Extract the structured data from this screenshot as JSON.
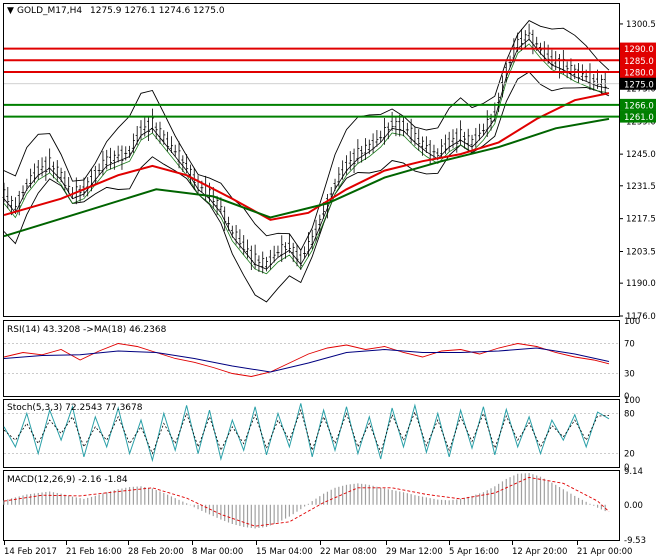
{
  "chart_data": [
    {
      "type": "candlestick",
      "title": "GOLD_M17,H4",
      "ohlc_label": "1275.9 1276.1 1274.6 1275.0",
      "current_price": 1275.0,
      "ylim": [
        1176.0,
        1309.0
      ],
      "price_ticks": [
        "1300.5",
        "1287.0",
        "1273.0",
        "1259.0",
        "1245.0",
        "1231.5",
        "1217.5",
        "1203.5",
        "1190.0",
        "1176.0"
      ],
      "price_tick_values": [
        1300.5,
        1287.0,
        1273.0,
        1259.0,
        1245.0,
        1231.5,
        1217.5,
        1203.5,
        1190.0,
        1176.0
      ],
      "levels": [
        {
          "label": "1290.0",
          "value": 1290.0,
          "color": "#e00000"
        },
        {
          "label": "1285.0",
          "value": 1285.0,
          "color": "#e00000"
        },
        {
          "label": "1280.0",
          "value": 1280.0,
          "color": "#e00000"
        },
        {
          "label": "1266.0",
          "value": 1266.0,
          "color": "#008000"
        },
        {
          "label": "1261.0",
          "value": 1261.0,
          "color": "#008000"
        }
      ],
      "close_path": [
        [
          0,
          1228
        ],
        [
          6,
          1222
        ],
        [
          12,
          1232
        ],
        [
          18,
          1238
        ],
        [
          24,
          1241
        ],
        [
          30,
          1236
        ],
        [
          36,
          1228
        ],
        [
          42,
          1230
        ],
        [
          48,
          1236
        ],
        [
          54,
          1242
        ],
        [
          60,
          1244
        ],
        [
          66,
          1246
        ],
        [
          72,
          1255
        ],
        [
          78,
          1258
        ],
        [
          84,
          1252
        ],
        [
          90,
          1246
        ],
        [
          96,
          1240
        ],
        [
          102,
          1232
        ],
        [
          108,
          1228
        ],
        [
          114,
          1222
        ],
        [
          120,
          1212
        ],
        [
          126,
          1206
        ],
        [
          132,
          1200
        ],
        [
          138,
          1198
        ],
        [
          144,
          1203
        ],
        [
          150,
          1206
        ],
        [
          156,
          1200
        ],
        [
          162,
          1208
        ],
        [
          168,
          1220
        ],
        [
          174,
          1232
        ],
        [
          180,
          1240
        ],
        [
          186,
          1245
        ],
        [
          192,
          1248
        ],
        [
          198,
          1252
        ],
        [
          204,
          1258
        ],
        [
          210,
          1257
        ],
        [
          216,
          1252
        ],
        [
          222,
          1248
        ],
        [
          228,
          1245
        ],
        [
          234,
          1250
        ],
        [
          240,
          1253
        ],
        [
          246,
          1250
        ],
        [
          252,
          1255
        ],
        [
          258,
          1262
        ],
        [
          264,
          1280
        ],
        [
          270,
          1292
        ],
        [
          276,
          1296
        ],
        [
          282,
          1290
        ],
        [
          288,
          1285
        ],
        [
          294,
          1283
        ],
        [
          300,
          1280
        ],
        [
          306,
          1278
        ],
        [
          312,
          1276
        ],
        [
          318,
          1275
        ]
      ],
      "ma_red": [
        [
          0,
          1219
        ],
        [
          30,
          1226
        ],
        [
          60,
          1236
        ],
        [
          78,
          1240
        ],
        [
          96,
          1236
        ],
        [
          120,
          1226
        ],
        [
          140,
          1217
        ],
        [
          160,
          1220
        ],
        [
          180,
          1230
        ],
        [
          200,
          1238
        ],
        [
          220,
          1242
        ],
        [
          240,
          1245
        ],
        [
          260,
          1250
        ],
        [
          280,
          1260
        ],
        [
          300,
          1268
        ],
        [
          318,
          1271
        ]
      ],
      "ma_green": [
        [
          0,
          1210
        ],
        [
          40,
          1220
        ],
        [
          80,
          1230
        ],
        [
          110,
          1227
        ],
        [
          140,
          1218
        ],
        [
          170,
          1224
        ],
        [
          200,
          1235
        ],
        [
          230,
          1242
        ],
        [
          260,
          1248
        ],
        [
          290,
          1256
        ],
        [
          318,
          1260
        ]
      ],
      "x_ticks": [
        "14 Feb 2017",
        "21 Feb 16:00",
        "28 Feb 20:00",
        "8 Mar 00:00",
        "15 Mar 04:00",
        "22 Mar 08:00",
        "29 Mar 12:00",
        "5 Apr 16:00",
        "12 Apr 20:00",
        "21 Apr 00:00"
      ]
    },
    {
      "type": "line",
      "title": "RSI(14) 43.3208 ->MA(18) 46.2368",
      "ylim": [
        0,
        100
      ],
      "ticks": [
        "100",
        "70",
        "30",
        "0"
      ],
      "tick_values": [
        100,
        70,
        30,
        0
      ],
      "rsi": [
        [
          0,
          52
        ],
        [
          10,
          58
        ],
        [
          20,
          55
        ],
        [
          30,
          62
        ],
        [
          40,
          48
        ],
        [
          50,
          60
        ],
        [
          60,
          70
        ],
        [
          70,
          66
        ],
        [
          80,
          58
        ],
        [
          90,
          50
        ],
        [
          100,
          45
        ],
        [
          110,
          38
        ],
        [
          120,
          30
        ],
        [
          130,
          26
        ],
        [
          140,
          32
        ],
        [
          150,
          44
        ],
        [
          160,
          56
        ],
        [
          170,
          64
        ],
        [
          180,
          68
        ],
        [
          190,
          62
        ],
        [
          200,
          66
        ],
        [
          210,
          58
        ],
        [
          220,
          52
        ],
        [
          230,
          60
        ],
        [
          240,
          62
        ],
        [
          250,
          56
        ],
        [
          260,
          64
        ],
        [
          270,
          70
        ],
        [
          280,
          66
        ],
        [
          290,
          58
        ],
        [
          300,
          52
        ],
        [
          310,
          48
        ],
        [
          318,
          43
        ]
      ],
      "rsi_ma": [
        [
          0,
          50
        ],
        [
          20,
          54
        ],
        [
          40,
          55
        ],
        [
          60,
          60
        ],
        [
          80,
          58
        ],
        [
          100,
          50
        ],
        [
          120,
          40
        ],
        [
          140,
          32
        ],
        [
          160,
          44
        ],
        [
          180,
          58
        ],
        [
          200,
          62
        ],
        [
          220,
          58
        ],
        [
          240,
          58
        ],
        [
          260,
          60
        ],
        [
          280,
          64
        ],
        [
          300,
          56
        ],
        [
          318,
          46
        ]
      ]
    },
    {
      "type": "line",
      "title": "Stoch(5,3,3) 72.2543 77.3678",
      "ylim": [
        0,
        100
      ],
      "ticks": [
        "100",
        "80",
        "20",
        "0"
      ],
      "tick_values": [
        100,
        80,
        20,
        0
      ],
      "main": [
        [
          0,
          60
        ],
        [
          6,
          30
        ],
        [
          12,
          80
        ],
        [
          18,
          20
        ],
        [
          24,
          85
        ],
        [
          30,
          40
        ],
        [
          36,
          90
        ],
        [
          42,
          15
        ],
        [
          48,
          75
        ],
        [
          54,
          30
        ],
        [
          60,
          88
        ],
        [
          66,
          20
        ],
        [
          72,
          70
        ],
        [
          78,
          10
        ],
        [
          84,
          80
        ],
        [
          90,
          25
        ],
        [
          96,
          92
        ],
        [
          102,
          20
        ],
        [
          108,
          85
        ],
        [
          114,
          12
        ],
        [
          120,
          70
        ],
        [
          126,
          25
        ],
        [
          132,
          90
        ],
        [
          138,
          18
        ],
        [
          144,
          80
        ],
        [
          150,
          30
        ],
        [
          156,
          95
        ],
        [
          162,
          15
        ],
        [
          168,
          85
        ],
        [
          174,
          25
        ],
        [
          180,
          90
        ],
        [
          186,
          20
        ],
        [
          192,
          75
        ],
        [
          198,
          12
        ],
        [
          204,
          88
        ],
        [
          210,
          30
        ],
        [
          216,
          92
        ],
        [
          222,
          22
        ],
        [
          228,
          80
        ],
        [
          234,
          15
        ],
        [
          240,
          85
        ],
        [
          246,
          28
        ],
        [
          252,
          90
        ],
        [
          258,
          18
        ],
        [
          264,
          86
        ],
        [
          270,
          30
        ],
        [
          276,
          75
        ],
        [
          282,
          20
        ],
        [
          288,
          70
        ],
        [
          294,
          40
        ],
        [
          300,
          78
        ],
        [
          306,
          30
        ],
        [
          312,
          82
        ],
        [
          318,
          72
        ]
      ],
      "signal": [
        [
          0,
          55
        ],
        [
          6,
          40
        ],
        [
          12,
          65
        ],
        [
          18,
          35
        ],
        [
          24,
          70
        ],
        [
          30,
          50
        ],
        [
          36,
          75
        ],
        [
          42,
          30
        ],
        [
          48,
          60
        ],
        [
          54,
          40
        ],
        [
          60,
          75
        ],
        [
          66,
          35
        ],
        [
          72,
          60
        ],
        [
          78,
          20
        ],
        [
          84,
          65
        ],
        [
          90,
          35
        ],
        [
          96,
          80
        ],
        [
          102,
          30
        ],
        [
          108,
          75
        ],
        [
          114,
          25
        ],
        [
          120,
          60
        ],
        [
          126,
          35
        ],
        [
          132,
          78
        ],
        [
          138,
          28
        ],
        [
          144,
          70
        ],
        [
          150,
          40
        ],
        [
          156,
          85
        ],
        [
          162,
          25
        ],
        [
          168,
          75
        ],
        [
          174,
          35
        ],
        [
          180,
          80
        ],
        [
          186,
          30
        ],
        [
          192,
          65
        ],
        [
          198,
          22
        ],
        [
          204,
          78
        ],
        [
          210,
          40
        ],
        [
          216,
          82
        ],
        [
          222,
          32
        ],
        [
          228,
          70
        ],
        [
          234,
          25
        ],
        [
          240,
          75
        ],
        [
          246,
          38
        ],
        [
          252,
          80
        ],
        [
          258,
          28
        ],
        [
          264,
          76
        ],
        [
          270,
          40
        ],
        [
          276,
          66
        ],
        [
          282,
          30
        ],
        [
          288,
          62
        ],
        [
          294,
          45
        ],
        [
          300,
          70
        ],
        [
          306,
          40
        ],
        [
          312,
          76
        ],
        [
          318,
          77
        ]
      ]
    },
    {
      "type": "bar",
      "title": "MACD(12,26,9) -2.16 -1.84",
      "ylim": [
        -9.53,
        9.14
      ],
      "ticks": [
        "9.14",
        "0.00",
        "-9.53"
      ],
      "tick_values": [
        9.14,
        0.0,
        -9.53
      ],
      "histogram": [
        [
          0,
          1.2
        ],
        [
          6,
          2.0
        ],
        [
          12,
          2.8
        ],
        [
          18,
          3.2
        ],
        [
          24,
          3.6
        ],
        [
          30,
          3.0
        ],
        [
          36,
          2.2
        ],
        [
          42,
          1.6
        ],
        [
          48,
          2.4
        ],
        [
          54,
          3.4
        ],
        [
          60,
          4.2
        ],
        [
          66,
          4.8
        ],
        [
          72,
          5.0
        ],
        [
          78,
          4.4
        ],
        [
          84,
          3.2
        ],
        [
          90,
          1.8
        ],
        [
          96,
          0.4
        ],
        [
          102,
          -1.2
        ],
        [
          108,
          -2.6
        ],
        [
          114,
          -4.0
        ],
        [
          120,
          -5.2
        ],
        [
          126,
          -6.0
        ],
        [
          132,
          -6.4
        ],
        [
          138,
          -6.0
        ],
        [
          144,
          -4.8
        ],
        [
          150,
          -3.2
        ],
        [
          156,
          -1.2
        ],
        [
          162,
          1.0
        ],
        [
          168,
          3.0
        ],
        [
          174,
          4.6
        ],
        [
          180,
          5.4
        ],
        [
          186,
          5.8
        ],
        [
          192,
          5.4
        ],
        [
          198,
          4.6
        ],
        [
          204,
          4.0
        ],
        [
          210,
          3.4
        ],
        [
          216,
          2.6
        ],
        [
          222,
          2.0
        ],
        [
          228,
          1.4
        ],
        [
          234,
          1.2
        ],
        [
          240,
          1.6
        ],
        [
          246,
          2.4
        ],
        [
          252,
          3.4
        ],
        [
          258,
          5.0
        ],
        [
          264,
          7.0
        ],
        [
          270,
          8.4
        ],
        [
          276,
          8.6
        ],
        [
          282,
          7.6
        ],
        [
          288,
          6.0
        ],
        [
          294,
          4.2
        ],
        [
          300,
          2.4
        ],
        [
          306,
          0.8
        ],
        [
          312,
          -0.8
        ],
        [
          318,
          -2.16
        ]
      ],
      "signal": [
        [
          0,
          1.0
        ],
        [
          20,
          2.6
        ],
        [
          40,
          2.4
        ],
        [
          60,
          3.6
        ],
        [
          78,
          4.6
        ],
        [
          96,
          1.8
        ],
        [
          114,
          -2.6
        ],
        [
          132,
          -5.8
        ],
        [
          150,
          -4.6
        ],
        [
          168,
          0.6
        ],
        [
          186,
          4.6
        ],
        [
          204,
          4.6
        ],
        [
          222,
          2.8
        ],
        [
          240,
          1.6
        ],
        [
          258,
          3.2
        ],
        [
          276,
          7.4
        ],
        [
          294,
          5.8
        ],
        [
          312,
          1.0
        ],
        [
          318,
          -1.84
        ]
      ]
    }
  ]
}
